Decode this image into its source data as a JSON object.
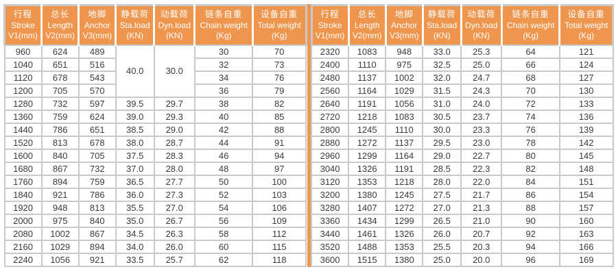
{
  "colors": {
    "header_bg": "#EF964E",
    "divider": "#EF964E",
    "grid": "#C9C9C9",
    "text": "#3B3B3B",
    "header_text": "#FFFFFF"
  },
  "table": {
    "columns": [
      {
        "key": "stroke",
        "zh": "行程",
        "en": "Stroke",
        "unit": "V1(mm)"
      },
      {
        "key": "length",
        "zh": "总长",
        "en": "Length",
        "unit": "V2(mm)"
      },
      {
        "key": "anchor",
        "zh": "地脚",
        "en": "Anchor",
        "unit": "V3(mm)"
      },
      {
        "key": "sta_load",
        "zh": "静载荷",
        "en": "Sta.load",
        "unit": "(KN)"
      },
      {
        "key": "dyn_load",
        "zh": "动载荷",
        "en": "Dyn.load",
        "unit": "(KN)"
      },
      {
        "key": "chain_weight",
        "zh": "链条自重",
        "en": "Chain weight",
        "unit": "(Kg)"
      },
      {
        "key": "total_weight",
        "zh": "设备自重",
        "en": "Total weight",
        "unit": "(Kg)"
      }
    ],
    "panels": [
      {
        "name": "left",
        "rows": [
          [
            "960",
            "624",
            "489",
            {
              "v": "40.0",
              "rowspan": 4
            },
            {
              "v": "30.0",
              "rowspan": 4
            },
            "30",
            "70"
          ],
          [
            "1040",
            "651",
            "516",
            null,
            null,
            "32",
            "73"
          ],
          [
            "1120",
            "678",
            "543",
            null,
            null,
            "34",
            "76"
          ],
          [
            "1200",
            "705",
            "570",
            null,
            null,
            "36",
            "79"
          ],
          [
            "1280",
            "732",
            "597",
            "39.5",
            "29.7",
            "38",
            "82"
          ],
          [
            "1360",
            "759",
            "624",
            "39.0",
            "29.3",
            "40",
            "85"
          ],
          [
            "1440",
            "786",
            "651",
            "38.5",
            "29.0",
            "42",
            "88"
          ],
          [
            "1520",
            "813",
            "678",
            "38.0",
            "28.7",
            "44",
            "91"
          ],
          [
            "1600",
            "840",
            "705",
            "37.5",
            "28.3",
            "46",
            "94"
          ],
          [
            "1680",
            "867",
            "732",
            "37.0",
            "28.0",
            "48",
            "97"
          ],
          [
            "1760",
            "894",
            "759",
            "36.5",
            "27.7",
            "50",
            "100"
          ],
          [
            "1840",
            "921",
            "786",
            "36.0",
            "27.3",
            "52",
            "103"
          ],
          [
            "1920",
            "948",
            "813",
            "35.5",
            "27.0",
            "54",
            "106"
          ],
          [
            "2000",
            "975",
            "840",
            "35.0",
            "26.7",
            "56",
            "109"
          ],
          [
            "2080",
            "1002",
            "867",
            "34.5",
            "26.3",
            "58",
            "112"
          ],
          [
            "2160",
            "1029",
            "894",
            "34.0",
            "26.0",
            "60",
            "115"
          ],
          [
            "2240",
            "1056",
            "921",
            "33.5",
            "25.7",
            "62",
            "118"
          ]
        ]
      },
      {
        "name": "right",
        "rows": [
          [
            "2320",
            "1083",
            "948",
            "33.0",
            "25.3",
            "64",
            "121"
          ],
          [
            "2400",
            "1110",
            "975",
            "32.5",
            "25.0",
            "66",
            "124"
          ],
          [
            "2480",
            "1137",
            "1002",
            "32.0",
            "24.7",
            "68",
            "127"
          ],
          [
            "2560",
            "1164",
            "1029",
            "31.5",
            "24.3",
            "70",
            "130"
          ],
          [
            "2640",
            "1191",
            "1056",
            "31.0",
            "24.0",
            "72",
            "133"
          ],
          [
            "2720",
            "1218",
            "1083",
            "30.5",
            "23.7",
            "74",
            "136"
          ],
          [
            "2800",
            "1245",
            "1110",
            "30.0",
            "23.3",
            "76",
            "139"
          ],
          [
            "2880",
            "1272",
            "1137",
            "29.5",
            "23.0",
            "78",
            "142"
          ],
          [
            "2960",
            "1299",
            "1164",
            "29.0",
            "22.7",
            "80",
            "145"
          ],
          [
            "3040",
            "1326",
            "1191",
            "28.5",
            "22.3",
            "82",
            "148"
          ],
          [
            "3120",
            "1353",
            "1218",
            "28.0",
            "22.0",
            "84",
            "151"
          ],
          [
            "3200",
            "1380",
            "1245",
            "27.5",
            "21.7",
            "86",
            "154"
          ],
          [
            "3280",
            "1407",
            "1272",
            "27.0",
            "21.3",
            "88",
            "157"
          ],
          [
            "3360",
            "1434",
            "1299",
            "26.5",
            "21.0",
            "90",
            "160"
          ],
          [
            "3440",
            "1461",
            "1326",
            "26.0",
            "20.7",
            "92",
            "163"
          ],
          [
            "3520",
            "1488",
            "1353",
            "25.5",
            "20.3",
            "94",
            "166"
          ],
          [
            "3600",
            "1515",
            "1380",
            "25.0",
            "20.0",
            "96",
            "169"
          ]
        ]
      }
    ]
  }
}
